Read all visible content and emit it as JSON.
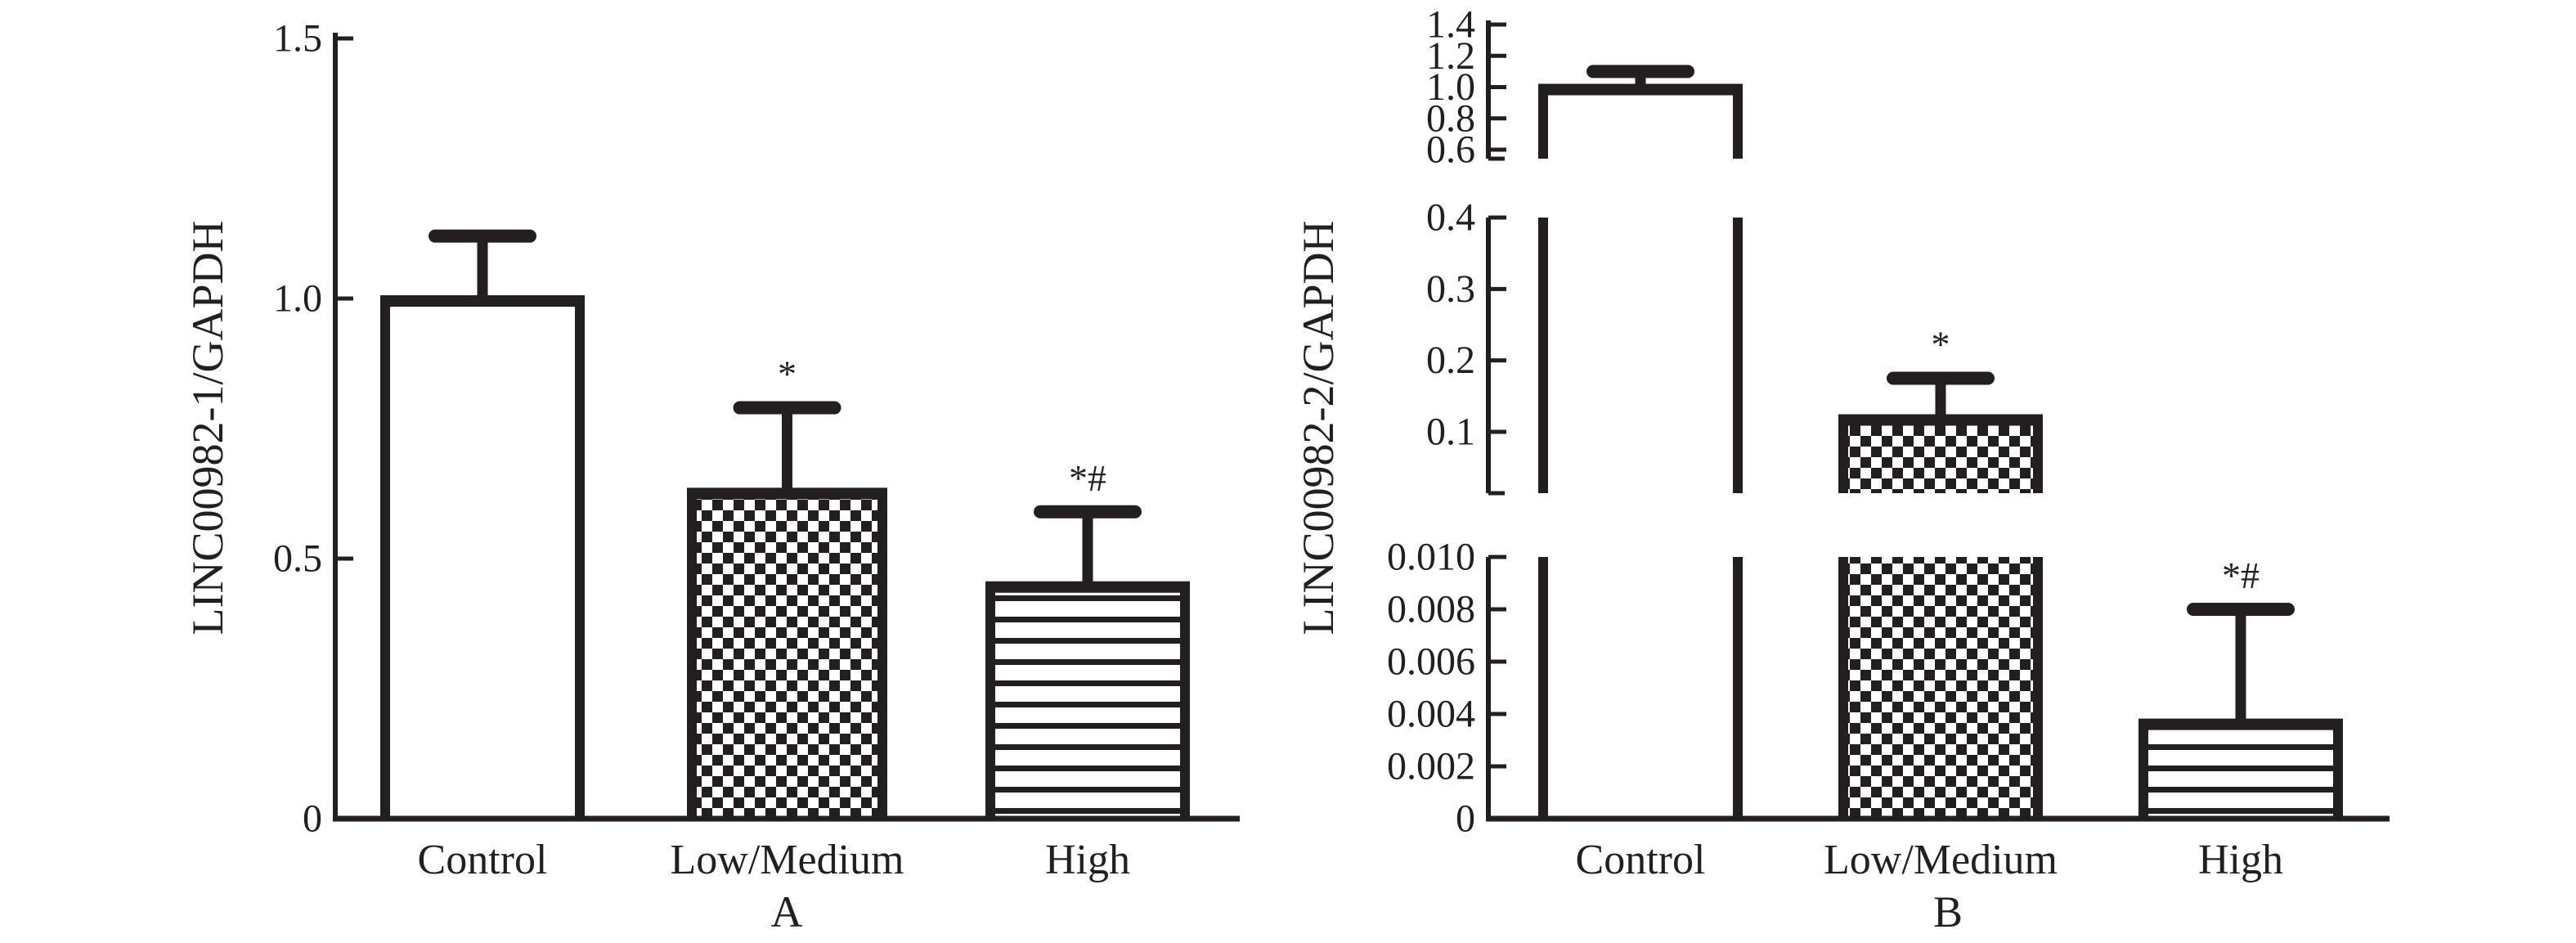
{
  "figure": {
    "background_color": "#ffffff",
    "ink_color": "#231f20",
    "description": "Two-panel bar chart figure, black on white, serif fonts"
  },
  "chart_data": [
    {
      "type": "bar",
      "panel_label": "A",
      "title": "",
      "xlabel": "",
      "ylabel": "LINC00982-1/GAPDH",
      "categories": [
        "Control",
        "Low/Medium",
        "High"
      ],
      "values": [
        1.0,
        0.63,
        0.45
      ],
      "error_plus": [
        0.12,
        0.16,
        0.14
      ],
      "annotations": [
        "",
        "*",
        "*#"
      ],
      "bar_patterns": [
        "plain-white",
        "checkerboard",
        "horizontal-stripes"
      ],
      "ylim": [
        0,
        1.5
      ],
      "grid": false,
      "legend": null,
      "axis_segments": [
        {
          "range": [
            0,
            1.5
          ],
          "ticks": [
            "1.5",
            "1.0",
            "0.5",
            "0"
          ]
        }
      ]
    },
    {
      "type": "bar",
      "panel_label": "B",
      "title": "",
      "xlabel": "",
      "ylabel": "LINC00982-2/GAPDH",
      "categories": [
        "Control",
        "Low/Medium",
        "High"
      ],
      "values": [
        1.0,
        0.12,
        0.0037
      ],
      "error_plus": [
        0.1,
        0.055,
        0.0043
      ],
      "annotations": [
        "",
        "*",
        "*#"
      ],
      "bar_patterns": [
        "plain-white",
        "checkerboard",
        "horizontal-stripes"
      ],
      "ylim": [
        0,
        1.4
      ],
      "grid": false,
      "legend": null,
      "axis_breaks": true,
      "axis_segments": [
        {
          "range": [
            0.6,
            1.4
          ],
          "ticks": [
            "1.4",
            "1.2",
            "1.0",
            "0.8",
            "0.6"
          ]
        },
        {
          "range": [
            0.1,
            0.4
          ],
          "ticks": [
            "0.4",
            "0.3",
            "0.2",
            "0.1"
          ]
        },
        {
          "range": [
            0,
            0.01
          ],
          "ticks": [
            "0.010",
            "0.008",
            "0.006",
            "0.004",
            "0.002",
            "0"
          ]
        }
      ]
    }
  ]
}
